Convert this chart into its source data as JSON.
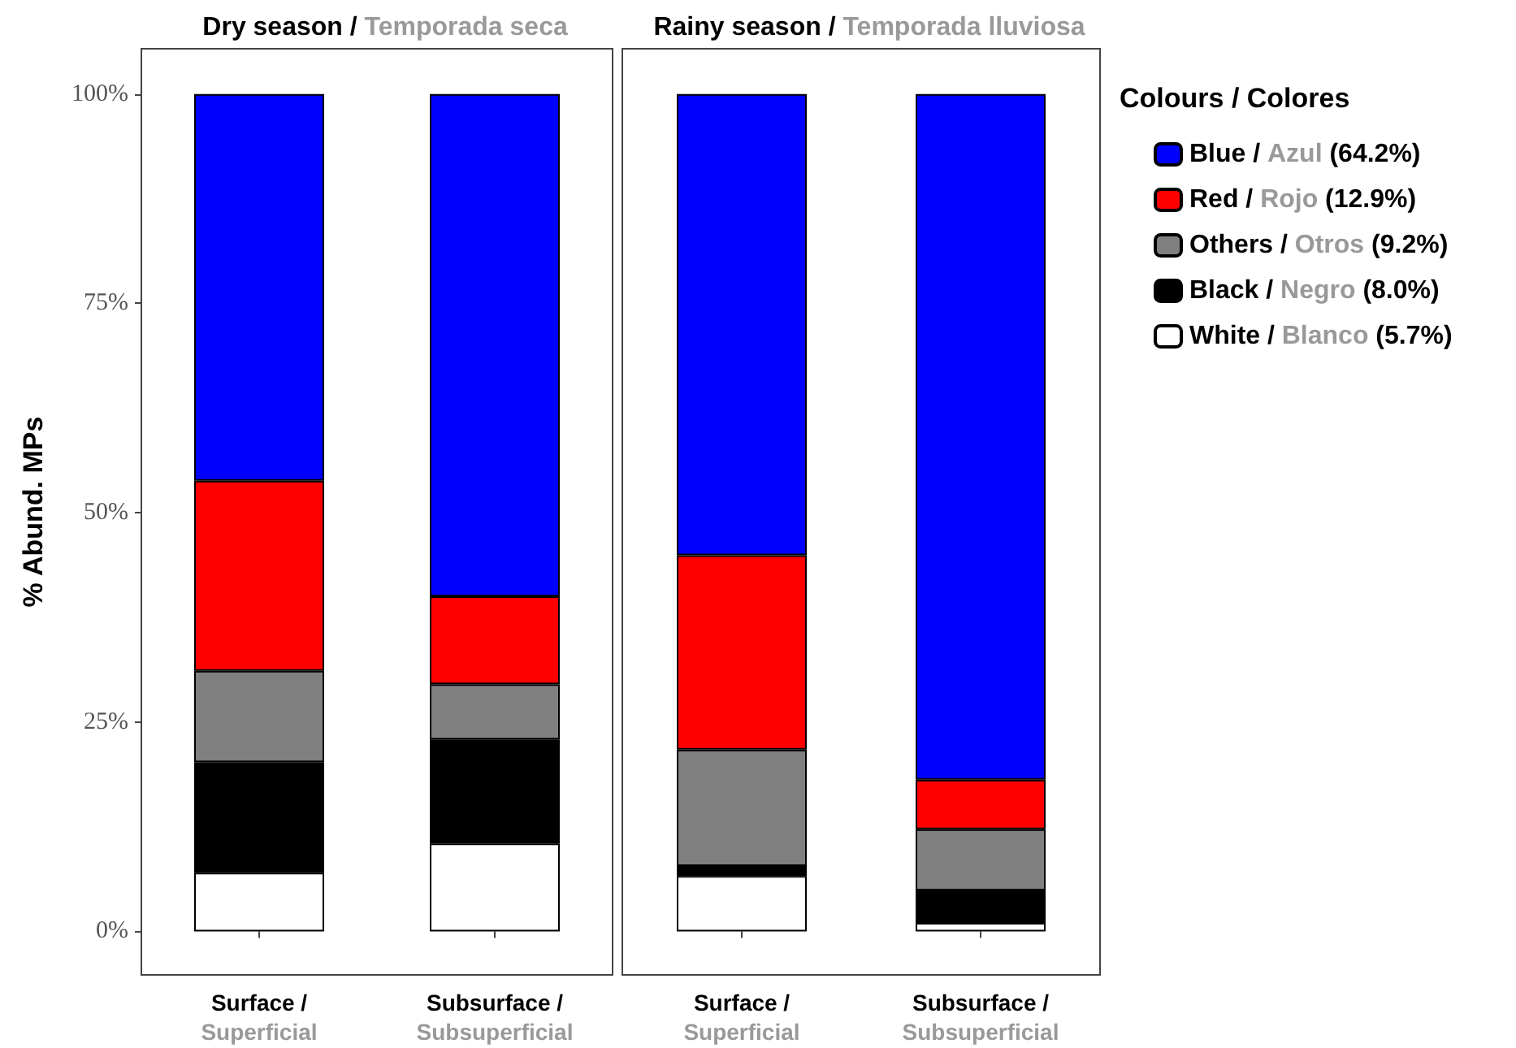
{
  "chart_data": [
    {
      "type": "bar",
      "stacked": true,
      "title": "Dry season / Temporada seca",
      "ylabel": "% Abund. MPs",
      "categories": [
        "Surface / Superficial",
        "Subsurface / Subsuperficial"
      ],
      "ylim": [
        -5.2,
        105.4
      ],
      "yticks": [
        {
          "value": 0,
          "label": "0%"
        },
        {
          "value": 25,
          "label": "25%"
        },
        {
          "value": 50,
          "label": "50%"
        },
        {
          "value": 75,
          "label": "75%"
        },
        {
          "value": 100,
          "label": "100%"
        }
      ],
      "legend": false,
      "series": [
        {
          "color": "#ffffff",
          "values": [
            7.0,
            10.5
          ]
        },
        {
          "color": "#000000",
          "values": [
            13.2,
            12.4
          ]
        },
        {
          "color": "#808080",
          "values": [
            10.9,
            6.6
          ]
        },
        {
          "color": "#ff0000",
          "values": [
            22.7,
            10.5
          ]
        },
        {
          "color": "#0000ff",
          "values": [
            46.2,
            60.0
          ]
        }
      ]
    },
    {
      "type": "bar",
      "stacked": true,
      "title": "Rainy season / Temporada lluviosa",
      "categories": [
        "Surface / Superficial",
        "Subsurface / Subsuperficial"
      ],
      "ylim": [
        -5.2,
        105.4
      ],
      "tick_labels": "x",
      "legend": "right",
      "legend_title": "Colours / Colores",
      "series": [
        {
          "name": "White / Blanco (5.7%)",
          "color": "#ffffff",
          "values": [
            6.6,
            1.0
          ]
        },
        {
          "name": "Black / Negro (8.0%)",
          "color": "#000000",
          "values": [
            1.2,
            3.9
          ]
        },
        {
          "name": "Others / Otros (9.2%)",
          "color": "#808080",
          "values": [
            13.9,
            7.3
          ]
        },
        {
          "name": "Red / Rojo (12.9%)",
          "color": "#ff0000",
          "values": [
            23.2,
            5.9
          ]
        },
        {
          "name": "Blue / Azul (64.2%)",
          "color": "#0000ff",
          "values": [
            55.1,
            81.9
          ]
        }
      ]
    }
  ]
}
